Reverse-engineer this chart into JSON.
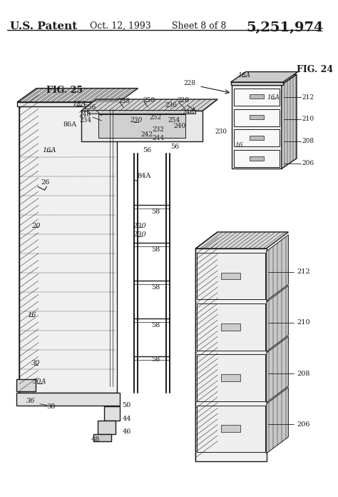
{
  "title_left": "U.S. Patent",
  "title_date": "Oct. 12, 1993",
  "title_sheet": "Sheet 8 of 8",
  "title_number": "5,251,974",
  "fig25_label": "FIG. 25",
  "fig24_label": "FIG. 24",
  "bg_color": "#ffffff",
  "line_color": "#1a1a1a",
  "font_family": "serif",
  "dpi": 100,
  "figw": 4.74,
  "figh": 6.96
}
